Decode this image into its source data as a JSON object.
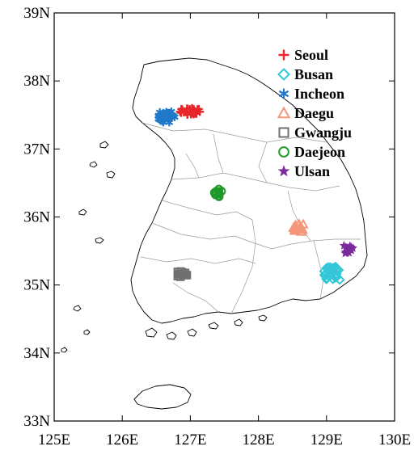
{
  "map": {
    "x_range": [
      125,
      130
    ],
    "y_range": [
      33,
      39
    ],
    "x_ticks": [
      {
        "value": 125,
        "label": "125E"
      },
      {
        "value": 126,
        "label": "126E"
      },
      {
        "value": 127,
        "label": "127E"
      },
      {
        "value": 128,
        "label": "128E"
      },
      {
        "value": 129,
        "label": "129E"
      },
      {
        "value": 130,
        "label": "130E"
      }
    ],
    "y_ticks": [
      {
        "value": 39,
        "label": "39N"
      },
      {
        "value": 38,
        "label": "38N"
      },
      {
        "value": 37,
        "label": "37N"
      },
      {
        "value": 36,
        "label": "36N"
      },
      {
        "value": 35,
        "label": "35N"
      },
      {
        "value": 34,
        "label": "34N"
      },
      {
        "value": 33,
        "label": "33N"
      }
    ]
  },
  "legend": [
    {
      "name": "Seoul",
      "marker": "plus",
      "color": "#e8252a"
    },
    {
      "name": "Busan",
      "marker": "diamond",
      "color": "#33c7d8"
    },
    {
      "name": "Incheon",
      "marker": "asterisk",
      "color": "#1f78c8"
    },
    {
      "name": "Daegu",
      "marker": "triangle",
      "color": "#f5967a"
    },
    {
      "name": "Gwangju",
      "marker": "square",
      "color": "#707070"
    },
    {
      "name": "Daejeon",
      "marker": "circle",
      "color": "#1f9a2a"
    },
    {
      "name": "Ulsan",
      "marker": "star",
      "color": "#7b2a9a"
    }
  ],
  "clusters": [
    {
      "city": "Seoul",
      "lon": 126.98,
      "lat": 37.55,
      "spread_lon": 0.17,
      "spread_lat": 0.05,
      "count": 30
    },
    {
      "city": "Incheon",
      "lon": 126.65,
      "lat": 37.47,
      "spread_lon": 0.12,
      "spread_lat": 0.08,
      "count": 32
    },
    {
      "city": "Daejeon",
      "lon": 127.4,
      "lat": 36.35,
      "spread_lon": 0.06,
      "spread_lat": 0.07,
      "count": 12
    },
    {
      "city": "Gwangju",
      "lon": 126.88,
      "lat": 35.16,
      "spread_lon": 0.08,
      "spread_lat": 0.04,
      "count": 14
    },
    {
      "city": "Daegu",
      "lon": 128.58,
      "lat": 35.84,
      "spread_lon": 0.09,
      "spread_lat": 0.06,
      "count": 18
    },
    {
      "city": "Busan",
      "lon": 129.08,
      "lat": 35.17,
      "spread_lon": 0.12,
      "spread_lat": 0.1,
      "count": 30
    },
    {
      "city": "Ulsan",
      "lon": 129.32,
      "lat": 35.52,
      "spread_lon": 0.07,
      "spread_lat": 0.06,
      "count": 16
    }
  ]
}
